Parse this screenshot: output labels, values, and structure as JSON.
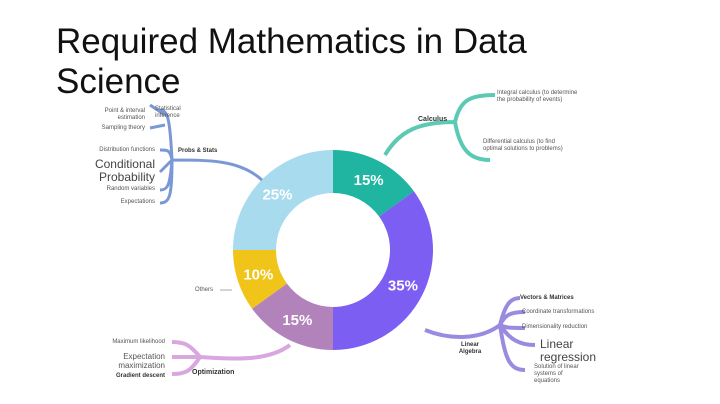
{
  "title": "Required Mathematics in Data Science",
  "chart_data": {
    "type": "pie",
    "donut": true,
    "categories": [
      "Calculus",
      "Linear Algebra",
      "Optimization",
      "Others",
      "Probs & Stats"
    ],
    "values": [
      15,
      35,
      15,
      10,
      25
    ],
    "labels": [
      "15%",
      "35%",
      "15%",
      "10%",
      "25%"
    ],
    "colors": [
      "#1fb5a0",
      "#7d5ef2",
      "#b282bb",
      "#f0c419",
      "#a9dbee"
    ]
  },
  "branches": {
    "calculus": {
      "label": "Calculus",
      "items": [
        "Integral calculus (to determine the probability of events)",
        "Differential calculus (to find optimal solutions to problems)"
      ]
    },
    "linear_algebra": {
      "label": "Linear Algebra",
      "items": [
        "Vectors & Matrices",
        "Coordinate transformations",
        "Dimensionality reduction",
        "Linear regression",
        "Solution of linear systems of equations"
      ]
    },
    "optimization": {
      "label": "Optimization",
      "items": [
        "Maximum likelihood",
        "Expectation maximization",
        "Gradient descent"
      ]
    },
    "others": {
      "label": "Others"
    },
    "probs_stats": {
      "label": "Probs & Stats",
      "items": [
        "Point & interval estimation",
        "Sampling theory",
        "Statistical inference",
        "Distribution functions",
        "Conditional Probability",
        "Random variables",
        "Expectations"
      ]
    }
  }
}
